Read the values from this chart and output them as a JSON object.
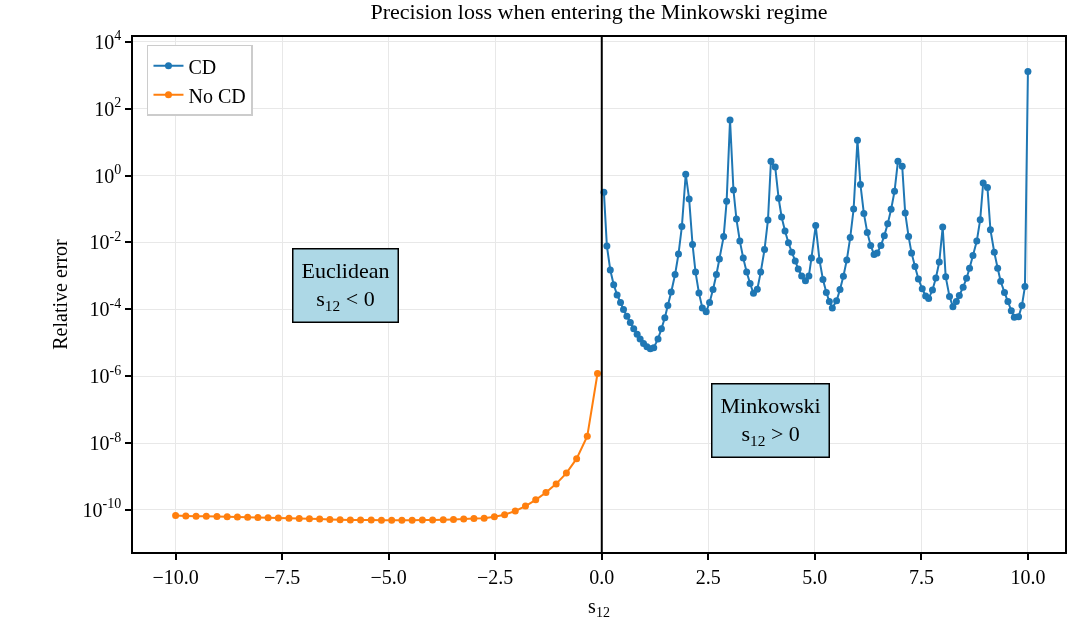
{
  "chart_data": {
    "type": "line",
    "title": "Precision loss when entering the Minkowski regime",
    "xlabel": "s$_{12}$",
    "ylabel": "Relative error",
    "annotations": [
      "Euclidean\ns$_{12}$ < 0",
      "Minkowski\ns$_{12}$ > 0"
    ],
    "series": [
      {
        "name": "CD",
        "color": "#1f77b4",
        "x": [
          0.05,
          0.12,
          0.2,
          0.28,
          0.36,
          0.44,
          0.51,
          0.59,
          0.67,
          0.75,
          0.83,
          0.9,
          0.98,
          1.06,
          1.14,
          1.22,
          1.32,
          1.4,
          1.48,
          1.55,
          1.63,
          1.72,
          1.8,
          1.88,
          1.97,
          2.05,
          2.13,
          2.2,
          2.28,
          2.36,
          2.45,
          2.53,
          2.61,
          2.69,
          2.76,
          2.86,
          2.93,
          3.01,
          3.09,
          3.16,
          3.24,
          3.32,
          3.4,
          3.48,
          3.56,
          3.65,
          3.73,
          3.82,
          3.9,
          3.97,
          4.07,
          4.15,
          4.22,
          4.3,
          4.38,
          4.46,
          4.54,
          4.61,
          4.69,
          4.78,
          4.86,
          4.92,
          5.02,
          5.11,
          5.19,
          5.27,
          5.34,
          5.41,
          5.51,
          5.59,
          5.67,
          5.75,
          5.83,
          5.91,
          6.0,
          6.07,
          6.15,
          6.23,
          6.31,
          6.39,
          6.46,
          6.55,
          6.63,
          6.71,
          6.79,
          6.87,
          6.95,
          7.05,
          7.12,
          7.2,
          7.27,
          7.35,
          7.43,
          7.52,
          7.6,
          7.67,
          7.76,
          7.84,
          7.92,
          8.0,
          8.07,
          8.16,
          8.24,
          8.32,
          8.39,
          8.48,
          8.56,
          8.63,
          8.71,
          8.8,
          8.88,
          8.95,
          9.05,
          9.12,
          9.21,
          9.29,
          9.36,
          9.45,
          9.53,
          9.61,
          9.68,
          9.78,
          9.86,
          9.93,
          10.0
        ],
        "values": [
          0.32,
          0.0078,
          0.0015,
          0.00054,
          0.00027,
          0.00016,
          9.8e-05,
          6.2e-05,
          4e-05,
          2.6e-05,
          1.8e-05,
          1.3e-05,
          9.5e-06,
          7.6e-06,
          6.6e-06,
          7.1e-06,
          1.3e-05,
          2.6e-05,
          5.6e-05,
          0.00013,
          0.00033,
          0.0011,
          0.0045,
          0.03,
          1.1,
          0.2,
          0.0087,
          0.0013,
          0.00031,
          0.00011,
          8.5e-05,
          0.00016,
          0.00039,
          0.0011,
          0.0032,
          0.015,
          0.17,
          46,
          0.37,
          0.05,
          0.011,
          0.0034,
          0.0013,
          0.00059,
          0.0003,
          0.0004,
          0.0013,
          0.0062,
          0.047,
          2.7,
          1.8,
          0.21,
          0.058,
          0.022,
          0.0098,
          0.0051,
          0.0028,
          0.0016,
          0.001,
          0.00072,
          0.001,
          0.0034,
          0.032,
          0.0029,
          0.00078,
          0.00032,
          0.00017,
          0.00011,
          0.00018,
          0.00039,
          0.00098,
          0.003,
          0.014,
          0.1,
          11.5,
          0.54,
          0.074,
          0.02,
          0.0081,
          0.0044,
          0.0048,
          0.0081,
          0.016,
          0.036,
          0.098,
          0.34,
          2.7,
          1.9,
          0.076,
          0.015,
          0.0048,
          0.0019,
          0.00081,
          0.00041,
          0.00025,
          0.00021,
          0.00038,
          0.00087,
          0.0026,
          0.029,
          0.00095,
          0.00024,
          0.00012,
          0.00017,
          0.00026,
          0.00046,
          0.00085,
          0.0017,
          0.0041,
          0.011,
          0.048,
          0.6,
          0.44,
          0.024,
          0.0051,
          0.0017,
          0.00069,
          0.00032,
          0.00017,
          9.1e-05,
          5.8e-05,
          6e-05,
          0.00013,
          0.00048,
          1300
        ]
      },
      {
        "name": "No CD",
        "color": "#ff7f0e",
        "x": [
          -10.0,
          -9.76,
          -9.52,
          -9.28,
          -9.03,
          -8.79,
          -8.55,
          -8.31,
          -8.07,
          -7.83,
          -7.59,
          -7.34,
          -7.1,
          -6.86,
          -6.62,
          -6.38,
          -6.14,
          -5.9,
          -5.66,
          -5.41,
          -5.17,
          -4.93,
          -4.69,
          -4.45,
          -4.21,
          -3.97,
          -3.72,
          -3.48,
          -3.24,
          -3.0,
          -2.76,
          -2.52,
          -2.28,
          -2.03,
          -1.79,
          -1.55,
          -1.31,
          -1.07,
          -0.83,
          -0.59,
          -0.34,
          -0.1
        ],
        "values": [
          6.8e-11,
          6.6e-11,
          6.5e-11,
          6.4e-11,
          6.3e-11,
          6.2e-11,
          6.1e-11,
          6e-11,
          5.9e-11,
          5.8e-11,
          5.7e-11,
          5.6e-11,
          5.5e-11,
          5.4e-11,
          5.3e-11,
          5.2e-11,
          5.1e-11,
          5e-11,
          5e-11,
          5e-11,
          4.9e-11,
          4.9e-11,
          4.9e-11,
          4.9e-11,
          5e-11,
          5e-11,
          5.1e-11,
          5.2e-11,
          5.3e-11,
          5.5e-11,
          5.6e-11,
          6.2e-11,
          7.2e-11,
          9.3e-11,
          1.3e-10,
          2e-10,
          3.3e-10,
          6e-10,
          1.26e-09,
          3.4e-09,
          1.6e-08,
          1.2e-06
        ]
      }
    ],
    "ref_lines": [
      {
        "axis": "x",
        "value": 0,
        "color": "#000000"
      }
    ],
    "log": "y",
    "grid": true,
    "legend": "top left",
    "marker": "circle",
    "line_style": "solid",
    "xlim": [
      -11.0,
      10.87
    ],
    "ylim": [
      5.5e-12,
      14000.0
    ],
    "xticks": [
      {
        "value": -10,
        "label": "−10.0"
      },
      {
        "value": -7.5,
        "label": "−7.5"
      },
      {
        "value": -5,
        "label": "−5.0"
      },
      {
        "value": -2.5,
        "label": "−2.5"
      },
      {
        "value": 0,
        "label": "0.0"
      },
      {
        "value": 2.5,
        "label": "2.5"
      },
      {
        "value": 5,
        "label": "5.0"
      },
      {
        "value": 7.5,
        "label": "7.5"
      },
      {
        "value": 10,
        "label": "10.0"
      }
    ],
    "yticks": [
      {
        "value": 1e-10,
        "label": "10$^{-10}$"
      },
      {
        "value": 1e-08,
        "label": "10$^{-8}$"
      },
      {
        "value": 1e-06,
        "label": "10$^{-6}$"
      },
      {
        "value": 0.0001,
        "label": "10$^{-4}$"
      },
      {
        "value": 0.01,
        "label": "10$^{-2}$"
      },
      {
        "value": 1,
        "label": "10$^{0}$"
      },
      {
        "value": 100,
        "label": "10$^{2}$"
      },
      {
        "value": 10000,
        "label": "10$^{4}$"
      }
    ]
  }
}
